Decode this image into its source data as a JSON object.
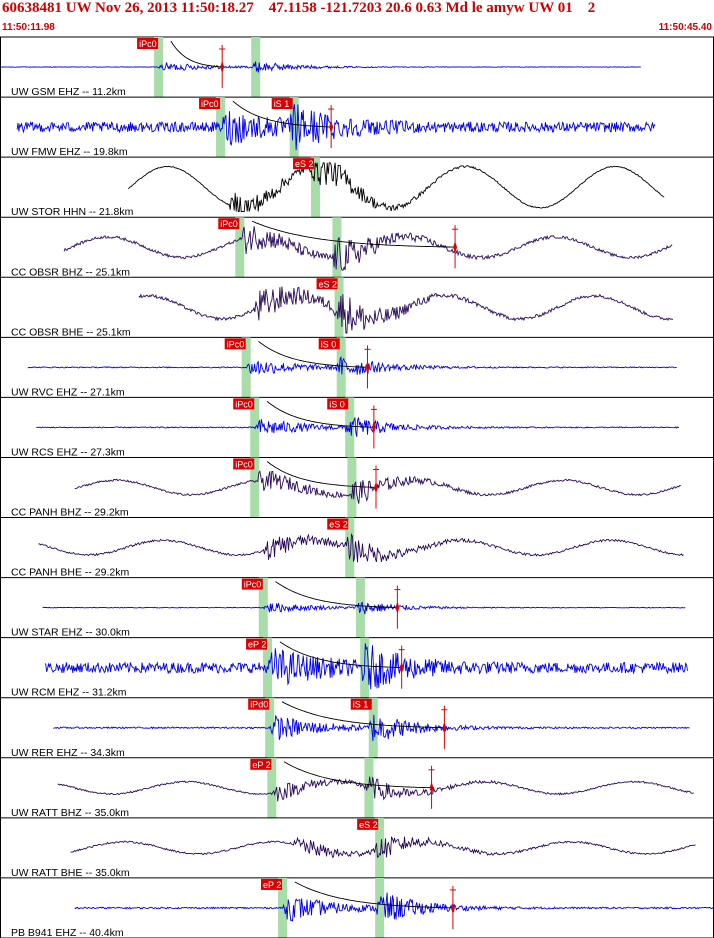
{
  "header": {
    "title": "60638481 UW Nov 26, 2013 11:50:18.27    47.1158 -121.7203 20.6 0.63 Md le amyw UW 01    2",
    "time_start": "11:50:11.98",
    "time_end": "11:50:45.40"
  },
  "colors": {
    "header_text": "#cc0000",
    "pick_box": "#dd0000",
    "pick_band": "#a8dca8",
    "trace_vertical": "#0000ee",
    "trace_horizontal_broadband": "#000000",
    "trace_broadband_vertical": "#2a0a5e",
    "separator": "#000000",
    "background": "#ffffff"
  },
  "chart_data": {
    "type": "line",
    "title": "60638481 UW Nov 26, 2013 11:50:18.27    47.1158 -121.7203 20.6 0.63 Md le amyw UW 01    2",
    "xlabel": "",
    "ylabel": "",
    "time_start": "11:50:11.98",
    "time_end": "11:50:45.40",
    "xlim_seconds": [
      0,
      33.42
    ],
    "grid": false,
    "legend": "none",
    "series": [
      {
        "name": "UW GSM EHZ -- 11.2km",
        "net": "UW",
        "sta": "GSM",
        "chan": "EHZ",
        "dist_km": 11.2,
        "kind": "ev",
        "amp": 0.25,
        "p_pick": {
          "label": "iPc0",
          "t": 7.4
        },
        "s_pick": null,
        "coda_end": 10.4,
        "trace_start": 0.0,
        "trace_end": 30.0
      },
      {
        "name": "UW FMW EHZ -- 19.8km",
        "net": "UW",
        "sta": "FMW",
        "chan": "EHZ",
        "dist_km": 19.8,
        "kind": "ev",
        "amp": 0.85,
        "p_pick": {
          "label": "iPc0",
          "t": 10.3
        },
        "s_pick": {
          "label": "iS 1",
          "t": 13.7
        },
        "coda_end": 15.5,
        "trace_start": 0.8,
        "trace_end": 30.7
      },
      {
        "name": "UW STOR HHN -- 21.8km",
        "net": "UW",
        "sta": "STOR",
        "chan": "HHN",
        "dist_km": 21.8,
        "kind": "bbh",
        "amp": 0.9,
        "p_pick": null,
        "s_pick": {
          "label": "eS 2",
          "t": 14.7
        },
        "coda_end": null,
        "trace_start": 6.0,
        "trace_end": 31.1
      },
      {
        "name": "CC OBSR BHZ -- 25.1km",
        "net": "CC",
        "sta": "OBSR",
        "chan": "BHZ",
        "dist_km": 25.1,
        "kind": "bbz",
        "amp": 0.85,
        "p_pick": {
          "label": "iPc0",
          "t": 11.2
        },
        "s_pick": null,
        "coda_end": 21.3,
        "trace_start": 3.0,
        "trace_end": 31.5
      },
      {
        "name": "CC OBSR BHE -- 25.1km",
        "net": "CC",
        "sta": "OBSR",
        "chan": "BHE",
        "dist_km": 25.1,
        "kind": "bbz",
        "amp": 0.95,
        "p_pick": null,
        "s_pick": {
          "label": "eS 2",
          "t": 15.8
        },
        "coda_end": null,
        "trace_start": 6.5,
        "trace_end": 31.5
      },
      {
        "name": "UW RVC EHZ -- 27.1km",
        "net": "UW",
        "sta": "RVC",
        "chan": "EHZ",
        "dist_km": 27.1,
        "kind": "ev",
        "amp": 0.5,
        "p_pick": {
          "label": "iPc0",
          "t": 11.5
        },
        "s_pick": {
          "label": "iS 0",
          "t": 15.9
        },
        "coda_end": 17.2,
        "trace_start": 1.3,
        "trace_end": 31.7
      },
      {
        "name": "UW RCS EHZ -- 27.3km",
        "net": "UW",
        "sta": "RCS",
        "chan": "EHZ",
        "dist_km": 27.3,
        "kind": "ev",
        "amp": 0.5,
        "p_pick": {
          "label": "iPc0",
          "t": 11.9
        },
        "s_pick": {
          "label": "iS 0",
          "t": 16.3
        },
        "coda_end": 17.5,
        "trace_start": 1.7,
        "trace_end": 31.8
      },
      {
        "name": "CC PANH BHZ -- 29.2km",
        "net": "CC",
        "sta": "PANH",
        "chan": "BHZ",
        "dist_km": 29.2,
        "kind": "bbz",
        "amp": 0.6,
        "p_pick": {
          "label": "iPc0",
          "t": 11.9
        },
        "s_pick": null,
        "coda_end": 17.6,
        "trace_start": 3.5,
        "trace_end": 31.9
      },
      {
        "name": "CC PANH BHE -- 29.2km",
        "net": "CC",
        "sta": "PANH",
        "chan": "BHE",
        "dist_km": 29.2,
        "kind": "bbz",
        "amp": 0.6,
        "p_pick": null,
        "s_pick": {
          "label": "eS 2",
          "t": 16.3
        },
        "coda_end": null,
        "trace_start": 1.8,
        "trace_end": 32.0
      },
      {
        "name": "UW STAR EHZ -- 30.0km",
        "net": "UW",
        "sta": "STAR",
        "chan": "EHZ",
        "dist_km": 30.0,
        "kind": "ev",
        "amp": 0.3,
        "p_pick": {
          "label": "iPc0",
          "t": 12.3
        },
        "s_pick": null,
        "coda_end": 18.6,
        "trace_start": 2.0,
        "trace_end": 32.1
      },
      {
        "name": "UW RCM EHZ -- 31.2km",
        "net": "UW",
        "sta": "RCM",
        "chan": "EHZ",
        "dist_km": 31.2,
        "kind": "ev",
        "amp": 0.9,
        "p_pick": {
          "label": "eP 2",
          "t": 12.5
        },
        "s_pick": null,
        "coda_end": 18.8,
        "trace_start": 2.1,
        "trace_end": 32.2
      },
      {
        "name": "UW RER EHZ -- 34.3km",
        "net": "UW",
        "sta": "RER",
        "chan": "EHZ",
        "dist_km": 34.3,
        "kind": "ev",
        "amp": 0.7,
        "p_pick": {
          "label": "iPd0",
          "t": 12.6
        },
        "s_pick": {
          "label": "iS 1",
          "t": 17.4
        },
        "coda_end": 20.8,
        "trace_start": 2.5,
        "trace_end": 32.3
      },
      {
        "name": "UW RATT BHZ -- 35.0km",
        "net": "UW",
        "sta": "RATT",
        "chan": "BHZ",
        "dist_km": 35.0,
        "kind": "bbz",
        "amp": 0.5,
        "p_pick": {
          "label": "eP 2",
          "t": 12.7
        },
        "s_pick": null,
        "coda_end": 20.2,
        "trace_start": 2.7,
        "trace_end": 32.5
      },
      {
        "name": "UW RATT BHE -- 35.0km",
        "net": "UW",
        "sta": "RATT",
        "chan": "BHE",
        "dist_km": 35.0,
        "kind": "bbz",
        "amp": 0.5,
        "p_pick": null,
        "s_pick": {
          "label": "eS 2",
          "t": 17.7
        },
        "coda_end": null,
        "trace_start": 3.3,
        "trace_end": 32.6
      },
      {
        "name": "PB B941 EHZ -- 40.4km",
        "net": "PB",
        "sta": "B941",
        "chan": "EHZ",
        "dist_km": 40.4,
        "kind": "ev",
        "amp": 0.75,
        "p_pick": {
          "label": "eP 2",
          "t": 13.2
        },
        "s_pick": null,
        "coda_end": 21.2,
        "trace_start": 3.5,
        "trace_end": 33.4
      }
    ]
  }
}
